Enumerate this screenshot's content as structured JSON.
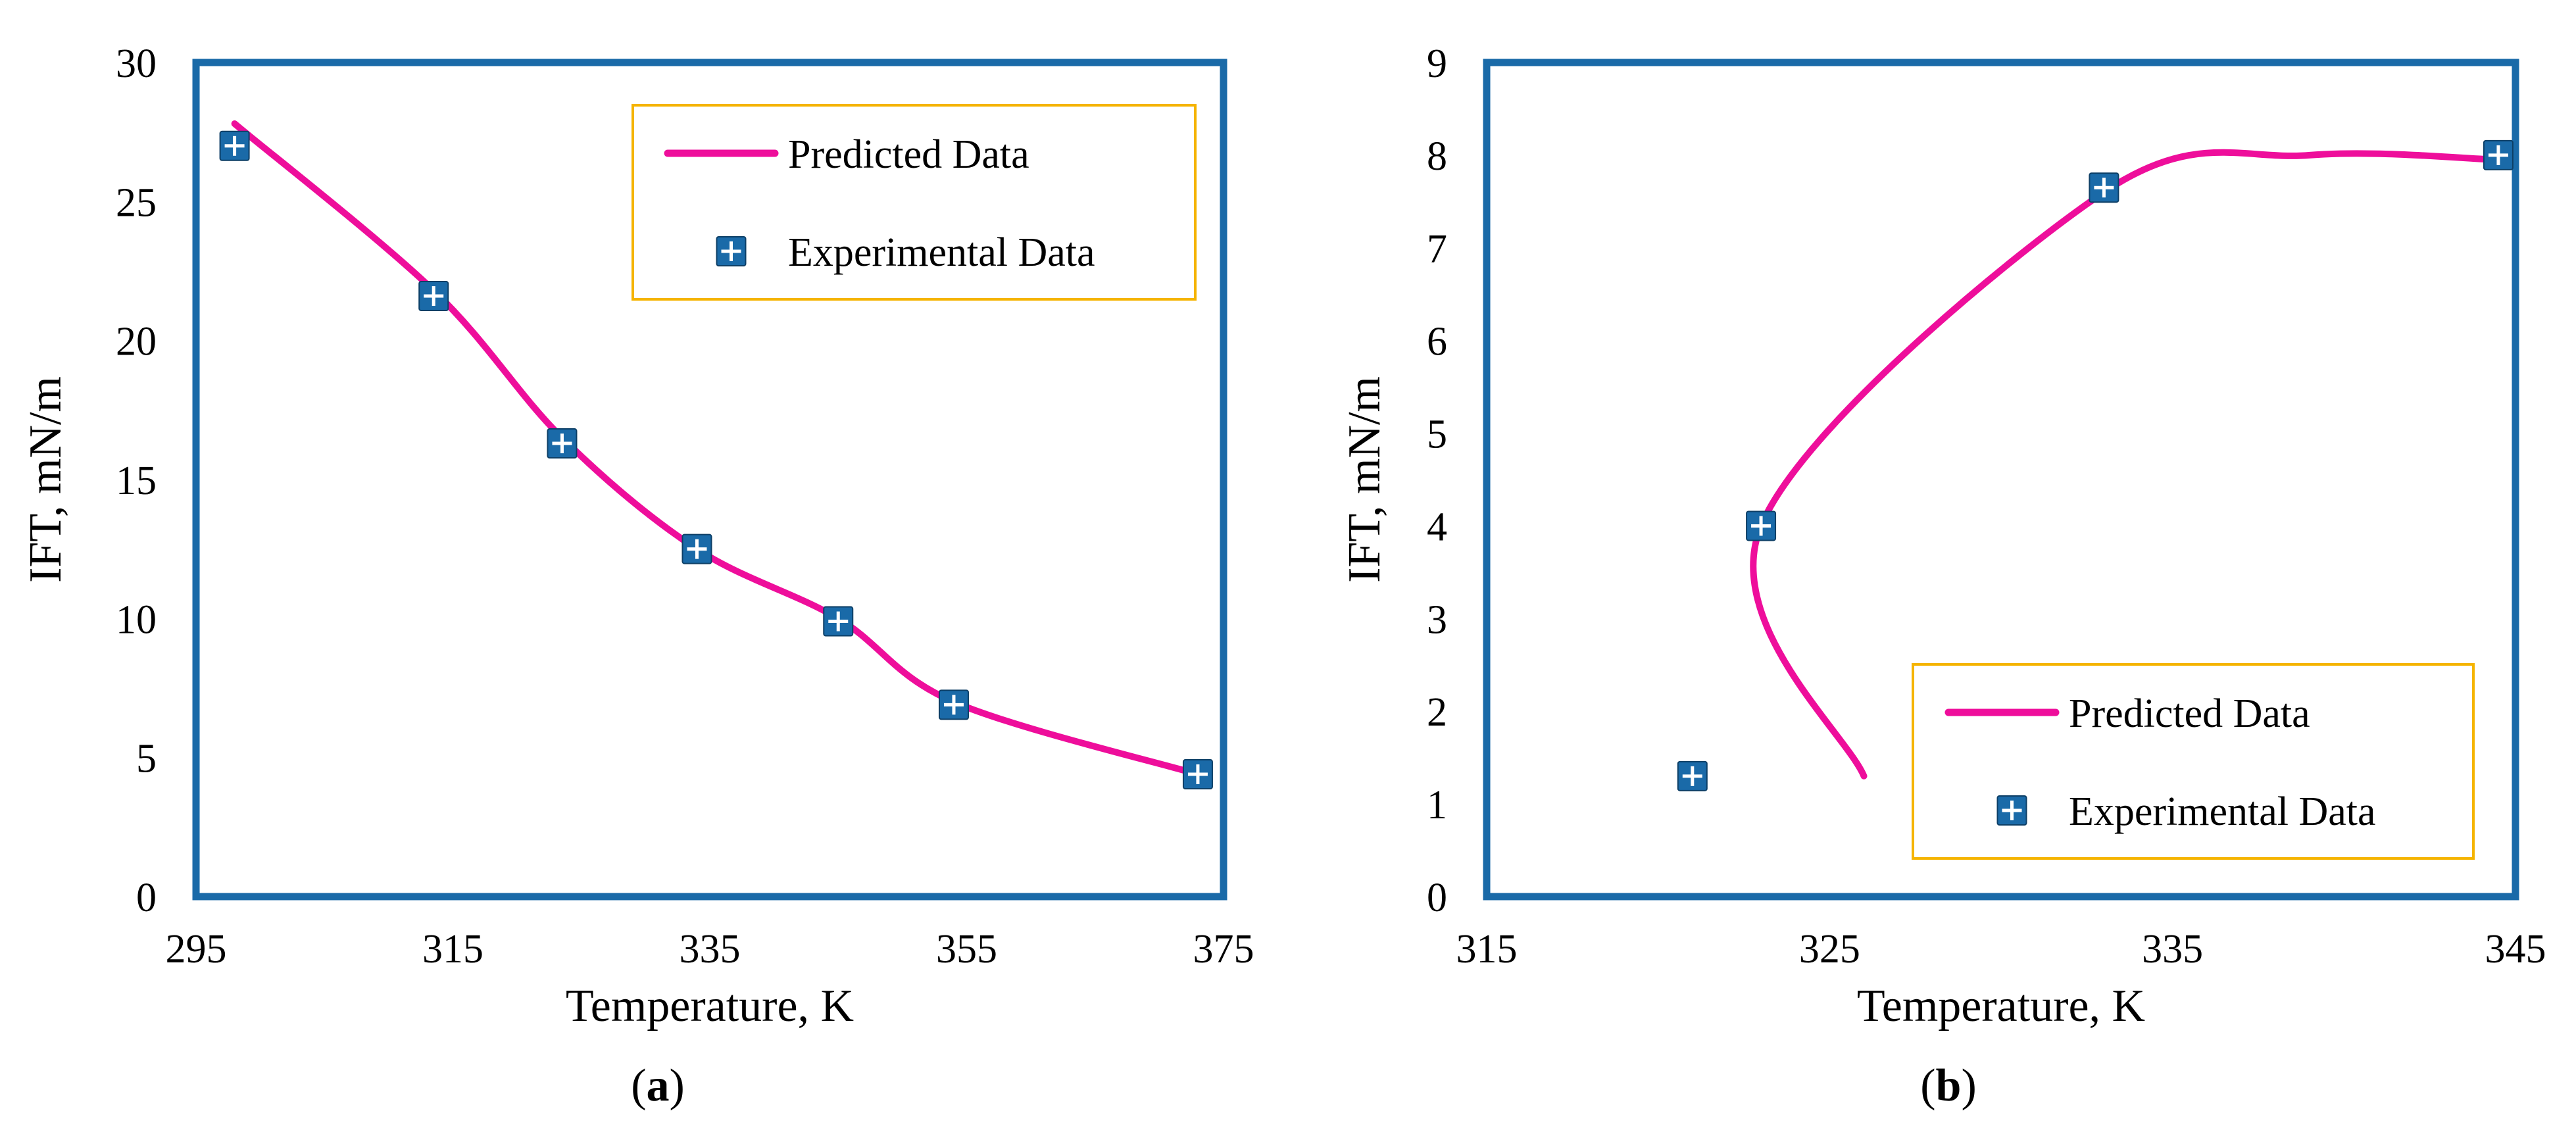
{
  "chart_data": [
    {
      "type": "line",
      "panel_label": "a",
      "xlabel": "Temperature, K",
      "ylabel": "IFT, mN/m",
      "xlim": [
        295,
        375
      ],
      "ylim": [
        0,
        30
      ],
      "xticks": [
        295,
        315,
        335,
        355,
        375
      ],
      "yticks": [
        0,
        5,
        10,
        15,
        20,
        25,
        30
      ],
      "legend_position": "top-right",
      "series": [
        {
          "name": "Predicted Data",
          "kind": "smooth-line",
          "color": "#ee0e9b",
          "x": [
            298,
            313.5,
            323.5,
            334,
            345,
            354,
            373
          ],
          "y": [
            27.8,
            21.8,
            16.5,
            12.5,
            10.0,
            7.0,
            4.4
          ]
        },
        {
          "name": "Experimental Data",
          "kind": "marker",
          "color": "#1a6aa8",
          "x": [
            298,
            313.5,
            323.5,
            334,
            345,
            354,
            373
          ],
          "y": [
            27.0,
            21.6,
            16.3,
            12.5,
            9.9,
            6.9,
            4.4
          ]
        }
      ]
    },
    {
      "type": "line",
      "panel_label": "b",
      "xlabel": "Temperature, K",
      "ylabel": "IFT, mN/m",
      "xlim": [
        315,
        345
      ],
      "ylim": [
        0,
        9
      ],
      "xticks": [
        315,
        325,
        335,
        345
      ],
      "yticks": [
        0,
        1,
        2,
        3,
        4,
        5,
        6,
        7,
        8,
        9
      ],
      "legend_position": "bottom-right",
      "series": [
        {
          "name": "Predicted Data",
          "kind": "smooth-line",
          "color": "#ee0e9b",
          "x": [
            326,
            323,
            333,
            339,
            344.5
          ],
          "y": [
            1.3,
            4.0,
            7.6,
            8.0,
            7.95
          ]
        },
        {
          "name": "Experimental Data",
          "kind": "marker",
          "color": "#1a6aa8",
          "x": [
            321,
            323,
            333,
            344.5
          ],
          "y": [
            1.3,
            4.0,
            7.65,
            8.0
          ]
        }
      ]
    }
  ]
}
